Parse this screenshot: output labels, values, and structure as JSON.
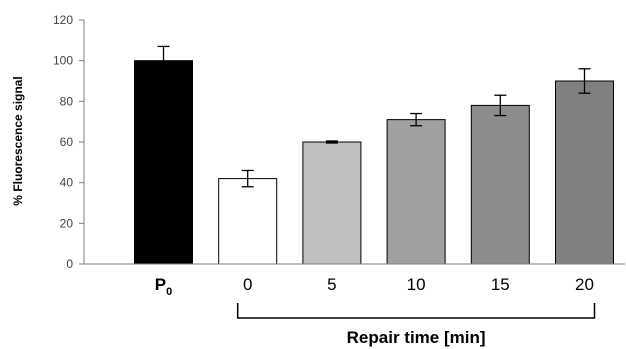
{
  "chart_data": {
    "type": "bar",
    "ylabel": "% Fluorescence signal",
    "ylim": [
      0,
      120
    ],
    "yticks": [
      0,
      20,
      40,
      60,
      80,
      100,
      120
    ],
    "grid": false,
    "categories": [
      {
        "main": "P",
        "sub": "0"
      },
      {
        "main": "0"
      },
      {
        "main": "5"
      },
      {
        "main": "10"
      },
      {
        "main": "15"
      },
      {
        "main": "20"
      }
    ],
    "values": [
      100,
      42,
      60,
      71,
      78,
      90
    ],
    "errors": [
      7,
      4,
      0.5,
      3,
      5,
      6
    ],
    "colors": [
      "#000000",
      "#ffffff",
      "#c0c0c0",
      "#a0a0a0",
      "#8c8c8c",
      "#808080"
    ],
    "group_label": "Repair time [min]",
    "group_span": [
      1,
      5
    ]
  }
}
